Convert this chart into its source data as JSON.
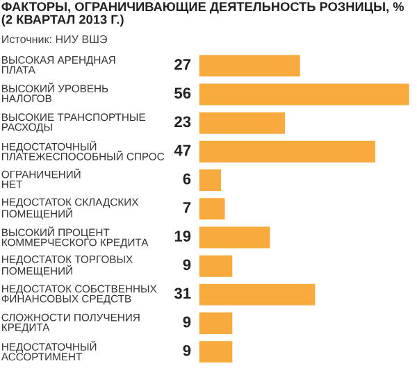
{
  "chart_data": {
    "type": "bar",
    "orientation": "horizontal",
    "title": "ФАКТОРЫ, ОГРАНИЧИВАЮЩИЕ ДЕЯТЕЛЬНОСТЬ РОЗНИЦЫ, %\n(2 КВАРТАЛ 2013 Г.)",
    "subtitle": "Источник: НИУ ВШЭ",
    "categories": [
      "ВЫСОКАЯ АРЕНДНАЯ\nПЛАТА",
      "ВЫСОКИЙ УРОВЕНЬ\nНАЛОГОВ",
      "ВЫСОКИЕ ТРАНСПОРТНЫЕ\nРАСХОДЫ",
      "НЕДОСТАТОЧНЫЙ\nПЛАТЕЖЕСПОСОБНЫЙ СПРОС",
      "ОГРАНИЧЕНИЙ\nНЕТ",
      "НЕДОСТАТОК СКЛАДСКИХ\nПОМЕЩЕНИЙ",
      "ВЫСОКИЙ ПРОЦЕНТ\nКОММЕРЧЕСКОГО КРЕДИТА",
      "НЕДОСТАТОК ТОРГОВЫХ\nПОМЕЩЕНИЙ",
      "НЕДОСТАТОК СОБСТВЕННЫХ\nФИНАНСОВЫХ СРЕДСТВ",
      "СЛОЖНОСТИ ПОЛУЧЕНИЯ\nКРЕДИТА",
      "НЕДОСТАТОЧНЫЙ\nАССОРТИМЕНТ"
    ],
    "values": [
      27,
      56,
      23,
      47,
      6,
      7,
      19,
      9,
      31,
      9,
      9
    ],
    "color": "#f8ab3c",
    "data_labels": true
  }
}
